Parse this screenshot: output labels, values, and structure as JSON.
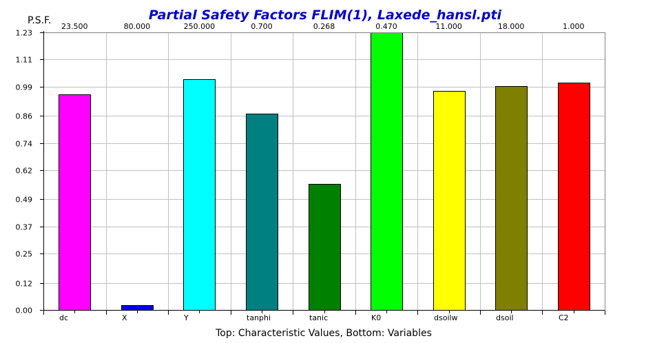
{
  "chart_data": {
    "type": "bar",
    "title": "Partial Safety Factors FLIM(1), Laxede_hansl.pti",
    "ylabel": "P.S.F.",
    "xlabel": "Top: Characteristic Values, Bottom: Variables",
    "ylim": [
      0,
      1.23
    ],
    "yticks": [
      "0.00",
      "0.12",
      "0.25",
      "0.37",
      "0.49",
      "0.62",
      "0.74",
      "0.86",
      "0.99",
      "1.11",
      "1.23"
    ],
    "grid": true,
    "categories": [
      "dc",
      "X",
      "Y",
      "tanphi",
      "tanic",
      "K0",
      "dsoilw",
      "dsoil",
      "C2"
    ],
    "top_labels": [
      "23.500",
      "80.000",
      "250.000",
      "0.700",
      "0.268",
      "0.470",
      "11.000",
      "18.000",
      "1.000"
    ],
    "values": [
      0.955,
      0.022,
      1.022,
      0.87,
      0.558,
      1.23,
      0.97,
      0.993,
      1.008
    ],
    "colors": [
      "#ff00ff",
      "#0000ee",
      "#00ffff",
      "#008080",
      "#008000",
      "#00ff00",
      "#ffff00",
      "#808000",
      "#ff0000"
    ]
  }
}
